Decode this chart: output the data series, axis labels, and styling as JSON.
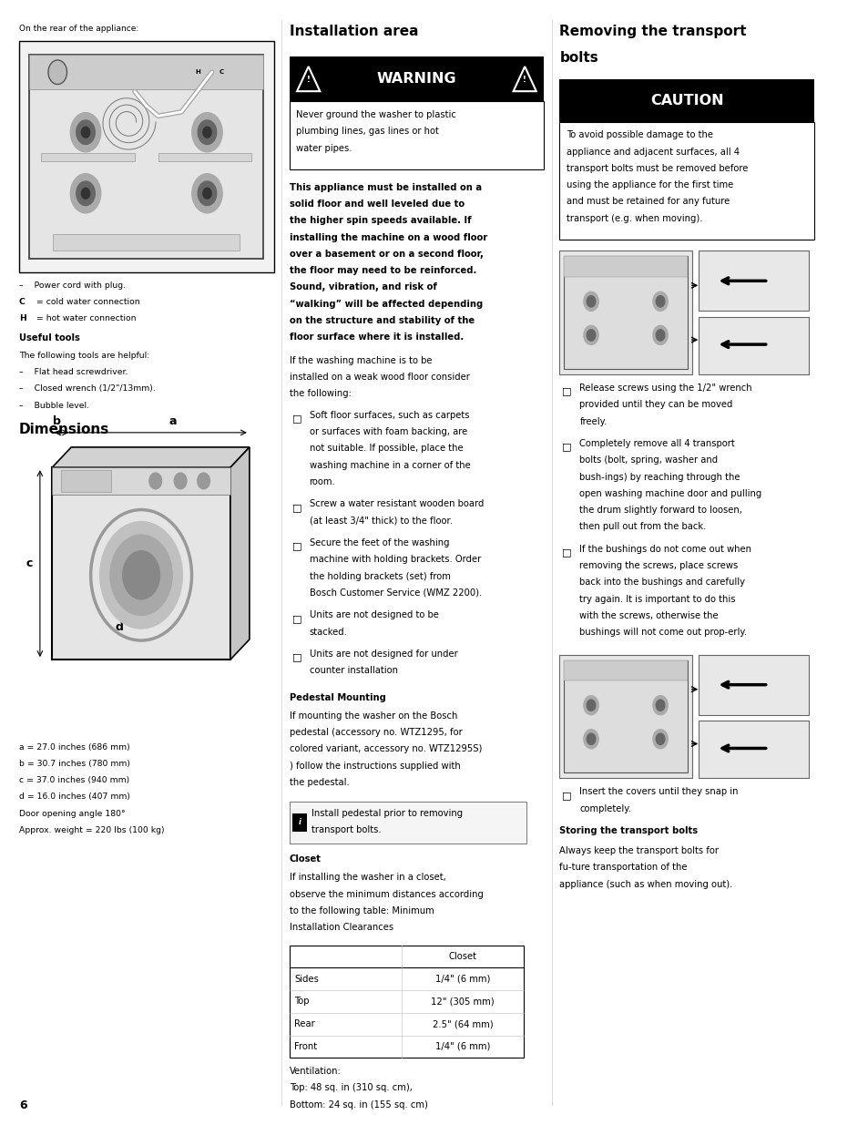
{
  "bg_color": "#ffffff",
  "page_width": 9.54,
  "page_height": 12.35,
  "left_col": {
    "header": "On the rear of the appliance:",
    "lines_below_image": [
      [
        false,
        "–    Power cord with plug."
      ],
      [
        true,
        "C",
        false,
        " = cold water connection"
      ],
      [
        true,
        "H",
        false,
        " = hot water connection"
      ]
    ],
    "useful_tools_header": "Useful tools",
    "useful_tools_intro": "The following tools are helpful:",
    "useful_tools_items": [
      "–    Flat head screwdriver.",
      "–    Closed wrench (1/2\"/13mm).",
      "–    Bubble level."
    ],
    "dimensions_header": "Dimensions",
    "dimensions_note": [
      "a = 27.0 inches (686 mm)",
      "b = 30.7 inches (780 mm)",
      "c = 37.0 inches (940 mm)",
      "d = 16.0 inches (407 mm)",
      "Door opening angle 180°",
      "Approx. weight = 220 lbs (100 kg)"
    ]
  },
  "middle_col": {
    "header": "Installation area",
    "warning_text": "WARNING",
    "warning_body": "Never ground the washer to plastic plumbing lines, gas lines or hot water pipes.",
    "bold_para": "This appliance must be installed on a solid floor and well leveled due to the higher spin speeds available. If installing the machine on a wood floor over a basement or on a second floor, the floor may need to be reinforced. Sound, vibration, and risk of “walking” will be affected depending on the structure and stability of the floor surface where it is installed.",
    "normal_para": "If the washing machine is to be installed on a weak wood floor consider the following:",
    "bullets": [
      "Soft floor surfaces, such as carpets or surfaces with foam backing, are not suitable. If possible, place the washing machine in a corner of the room.",
      "Screw a water resistant wooden board (at least 3/4\" thick) to the floor.",
      "Secure the feet of the washing machine with holding brackets. Order the holding brackets (set) from Bosch Customer Service (WMZ 2200).",
      "Units are not designed to be stacked.",
      "Units are not designed for under counter installation"
    ],
    "pedestal_header": "Pedestal Mounting",
    "pedestal_text": "If mounting the washer on the Bosch pedestal (accessory no. WTZ1295, for colored variant, accessory no. WTZ1295S) ) follow the instructions supplied with the pedestal.",
    "pedestal_note": "Install pedestal prior to removing transport bolts.",
    "closet_header": "Closet",
    "closet_text": "If installing the washer in a closet, observe the minimum distances according to the following table: Minimum Installation Clearances",
    "table_header": "Closet",
    "table_rows": [
      [
        "Sides",
        "1/4\" (6 mm)"
      ],
      [
        "Top",
        "12\" (305 mm)"
      ],
      [
        "Rear",
        "2.5\" (64 mm)"
      ],
      [
        "Front",
        "1/4\" (6 mm)"
      ]
    ],
    "ventilation_text": "Ventilation:\nTop: 48 sq. in (310 sq. cm),\nBottom: 24 sq. in (155 sq. cm)"
  },
  "right_col": {
    "header1": "Removing the transport",
    "header2": "bolts",
    "caution_text": "CAUTION",
    "caution_body": "To avoid possible damage to the appliance and adjacent surfaces, all 4 transport bolts must be removed before using the appliance for the first time and must be retained for any future transport (e.g. when moving).",
    "bullets": [
      "Release screws using the 1/2\" wrench provided until they can be moved freely.",
      "Completely remove all 4 transport bolts (bolt, spring, washer and bush-ings) by reaching through the open washing machine door and pulling the drum slightly forward to loosen, then pull out from the back.",
      "If the bushings do not come out when removing the screws, place screws back into the bushings and carefully try again.  It is important to do this with the screws, otherwise the bushings will not come out prop-erly.",
      "Insert the covers until they snap in completely."
    ],
    "storing_header": "Storing the transport bolts",
    "storing_text": "Always keep the transport bolts for fu-ture transportation of the appliance (such as when moving out)."
  },
  "page_number": "6"
}
